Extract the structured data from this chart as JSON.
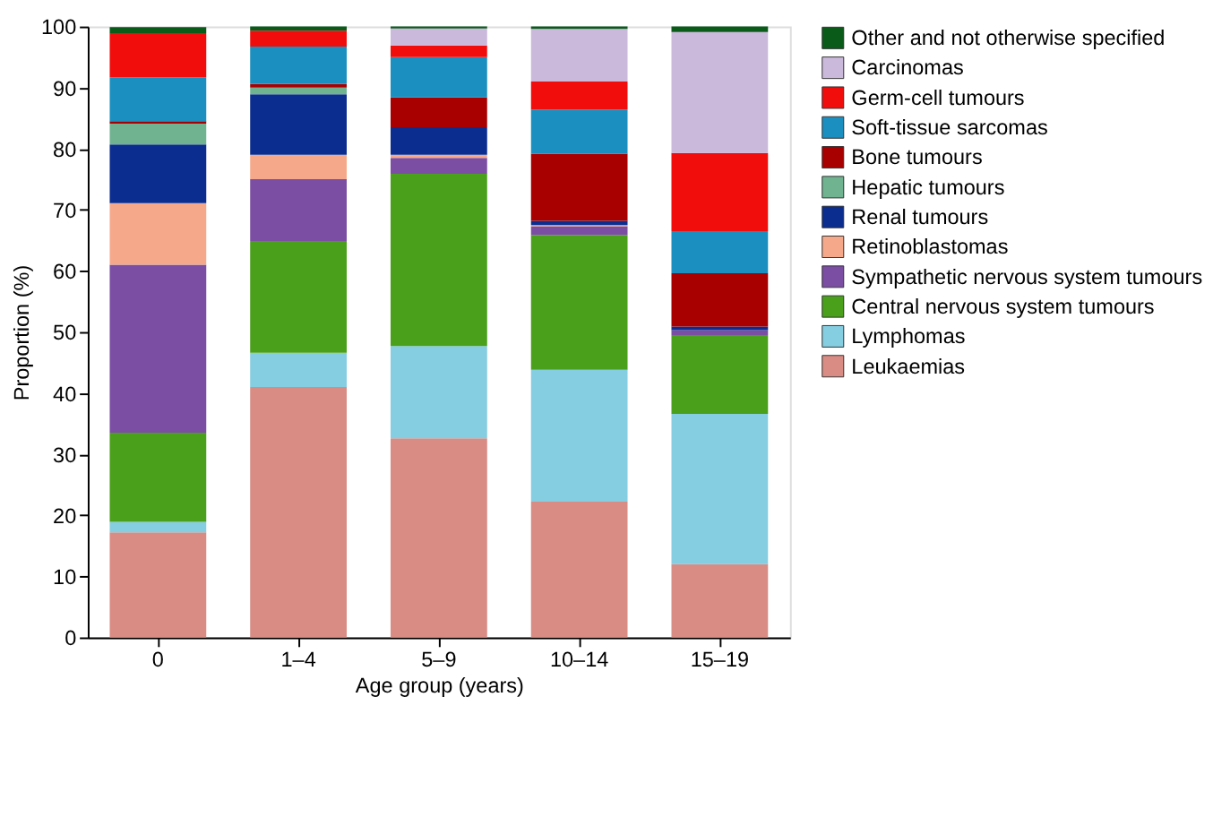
{
  "chart_data": {
    "type": "bar",
    "stacked": true,
    "xlabel": "Age group (years)",
    "ylabel": "Proportion (%)",
    "categories": [
      "0",
      "1–4",
      "5–9",
      "10–14",
      "15–19"
    ],
    "ylim": [
      0,
      100
    ],
    "yticks": [
      0,
      10,
      20,
      30,
      40,
      50,
      60,
      70,
      80,
      90,
      100
    ],
    "grid": false,
    "legend": "right",
    "series": [
      {
        "name": "Leukaemias",
        "color": "#d98c84",
        "values": [
          17.2,
          41.0,
          32.6,
          22.2,
          12.0
        ]
      },
      {
        "name": "Lymphomas",
        "color": "#85cde0",
        "values": [
          1.7,
          5.6,
          15.1,
          21.6,
          24.6
        ]
      },
      {
        "name": "Central nervous system tumours",
        "color": "#4aa01a",
        "values": [
          14.6,
          18.3,
          28.2,
          22.1,
          12.9
        ]
      },
      {
        "name": "Sympathetic nervous system tumours",
        "color": "#7b4ea3",
        "values": [
          27.5,
          10.1,
          2.6,
          1.4,
          0.8
        ]
      },
      {
        "name": "Retinoblastomas",
        "color": "#f5a98a",
        "values": [
          10.1,
          4.0,
          0.5,
          0.2,
          0
        ]
      },
      {
        "name": "Renal tumours",
        "color": "#0a2d8f",
        "values": [
          9.6,
          9.9,
          4.5,
          0.7,
          0.6
        ]
      },
      {
        "name": "Hepatic tumours",
        "color": "#6fb391",
        "values": [
          3.4,
          1.1,
          0,
          0,
          0
        ]
      },
      {
        "name": "Bone tumours",
        "color": "#a80000",
        "values": [
          0.4,
          0.6,
          4.9,
          11.0,
          8.7
        ]
      },
      {
        "name": "Soft-tissue sarcomas",
        "color": "#1b8fbf",
        "values": [
          7.2,
          6.1,
          6.6,
          7.2,
          6.9
        ]
      },
      {
        "name": "Germ-cell tumours",
        "color": "#f20d0d",
        "values": [
          7.2,
          2.6,
          1.9,
          4.6,
          12.8
        ]
      },
      {
        "name": "Carcinomas",
        "color": "#cbb9dc",
        "values": [
          0,
          null,
          2.8,
          8.6,
          19.8
        ]
      },
      {
        "name": "Other and not otherwise specified",
        "color": "#0a5a1a",
        "values": [
          1.0,
          0.7,
          0.3,
          0.4,
          0.9
        ]
      }
    ]
  }
}
